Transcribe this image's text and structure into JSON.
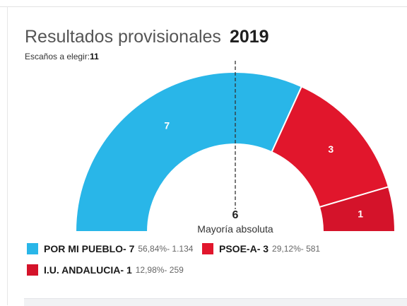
{
  "header": {
    "title": "Resultados provisionales",
    "year": "2019",
    "seats_label": "Escaños a elegir:",
    "seats_total": "11"
  },
  "majority": {
    "value": "6",
    "label": "Mayoría absoluta"
  },
  "chart_data": {
    "type": "parliament-semicircle",
    "total_seats": 11,
    "majority": 6,
    "parties": [
      {
        "name": "POR MI PUEBLO",
        "seats": 7,
        "percent": "56,84%",
        "votes": "1.134",
        "color": "#29b6e8"
      },
      {
        "name": "PSOE-A",
        "seats": 3,
        "percent": "29,12%",
        "votes": "581",
        "color": "#e1162c"
      },
      {
        "name": "I.U. ANDALUCIA",
        "seats": 1,
        "percent": "12,98%",
        "votes": "259",
        "color": "#d4132a"
      }
    ]
  },
  "legend": {
    "separator": "- ",
    "items": [
      {
        "name": "POR MI PUEBLO",
        "seats": "7",
        "stats": "56,84%- 1.134",
        "color": "#29b6e8"
      },
      {
        "name": "PSOE-A",
        "seats": "3",
        "stats": "29,12%- 581",
        "color": "#e1162c"
      },
      {
        "name": "I.U. ANDALUCIA",
        "seats": "1",
        "stats": "12,98%- 259",
        "color": "#d4132a"
      }
    ]
  }
}
